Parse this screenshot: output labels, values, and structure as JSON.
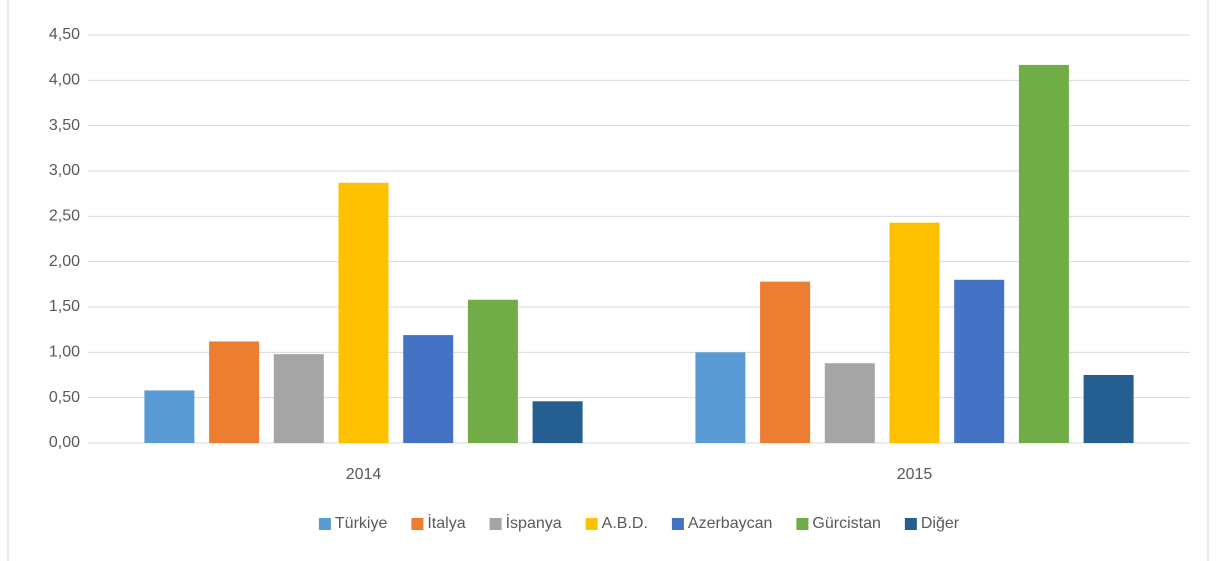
{
  "chart_data": {
    "type": "bar",
    "categories": [
      "2014",
      "2015"
    ],
    "series": [
      {
        "name": "Türkiye",
        "color": "#5b9bd5",
        "values": [
          0.58,
          1.0
        ]
      },
      {
        "name": "İtalya",
        "color": "#ed7d31",
        "values": [
          1.12,
          1.78
        ]
      },
      {
        "name": "İspanya",
        "color": "#a5a5a5",
        "values": [
          0.98,
          0.88
        ]
      },
      {
        "name": "A.B.D.",
        "color": "#ffc000",
        "values": [
          2.87,
          2.43
        ]
      },
      {
        "name": "Azerbaycan",
        "color": "#4472c4",
        "values": [
          1.19,
          1.8
        ]
      },
      {
        "name": "Gürcistan",
        "color": "#70ad47",
        "values": [
          1.58,
          4.17
        ]
      },
      {
        "name": "Diğer",
        "color": "#255e91",
        "values": [
          0.46,
          0.75
        ]
      }
    ],
    "ylim": [
      0,
      4.5
    ],
    "yticks": [
      {
        "value": 0,
        "label": "0,00"
      },
      {
        "value": 0.5,
        "label": "0,50"
      },
      {
        "value": 1,
        "label": "1,00"
      },
      {
        "value": 1.5,
        "label": "1,50"
      },
      {
        "value": 2,
        "label": "2,00"
      },
      {
        "value": 2.5,
        "label": "2,50"
      },
      {
        "value": 3,
        "label": "3,00"
      },
      {
        "value": 3.5,
        "label": "3,50"
      },
      {
        "value": 4,
        "label": "4,00"
      },
      {
        "value": 4.5,
        "label": "4,50"
      }
    ],
    "grid": true,
    "legend": "bottom"
  }
}
